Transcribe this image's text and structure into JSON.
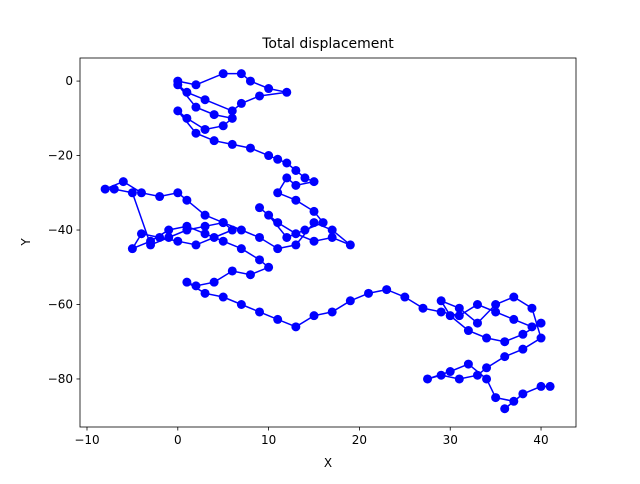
{
  "chart_data": {
    "type": "line",
    "title": "Total displacement",
    "xlabel": "X",
    "ylabel": "Y",
    "color": "#0000ff",
    "marker": true,
    "grid": false,
    "xlim": [
      -10.77,
      43.85
    ],
    "ylim": [
      -92.9,
      6.2
    ],
    "xticks": [
      {
        "value": -10,
        "label": "−10"
      },
      0,
      10,
      20,
      30,
      40
    ],
    "yticks": [
      {
        "value": -80,
        "label": "−80"
      },
      {
        "value": -60,
        "label": "−60"
      },
      {
        "value": -40,
        "label": "−40"
      },
      {
        "value": -20,
        "label": "−20"
      },
      0
    ],
    "x": [
      0,
      2,
      5,
      7,
      8,
      10,
      12,
      9,
      7,
      6,
      3,
      1,
      0,
      2,
      4,
      6,
      5,
      3,
      1,
      0,
      2,
      4,
      6,
      8,
      10,
      11,
      12,
      13,
      14,
      15,
      13,
      12,
      11,
      13,
      15,
      16,
      14,
      12,
      10,
      9,
      11,
      13,
      15,
      17,
      19,
      17,
      15,
      13,
      11,
      9,
      7,
      5,
      3,
      1,
      -1,
      -3,
      -5,
      -7,
      -8,
      -6,
      -4,
      -2,
      0,
      1,
      3,
      5,
      6,
      4,
      2,
      0,
      -2,
      -4,
      -5,
      -3,
      -1,
      1,
      3,
      5,
      7,
      9,
      10,
      8,
      6,
      4,
      2,
      1,
      3,
      5,
      7,
      9,
      11,
      13,
      15,
      17,
      19,
      21,
      23,
      25,
      27,
      29,
      31,
      33,
      35,
      37,
      39,
      40,
      38,
      36,
      34,
      32,
      30,
      29,
      31,
      33,
      35,
      37,
      39,
      40,
      38,
      36,
      34,
      33,
      31,
      29,
      27.5,
      30,
      32,
      34,
      35,
      37,
      36,
      38,
      40,
      41
    ],
    "y": [
      0,
      -1,
      2,
      2,
      0,
      -2,
      -3,
      -4,
      -6,
      -8,
      -5,
      -3,
      -1,
      -7,
      -9,
      -10,
      -12,
      -13,
      -10,
      -8,
      -14,
      -16,
      -17,
      -18,
      -20,
      -21,
      -22,
      -24,
      -26,
      -27,
      -28,
      -26,
      -30,
      -32,
      -35,
      -38,
      -40,
      -42,
      -36,
      -34,
      -38,
      -41,
      -43,
      -42,
      -44,
      -40,
      -38,
      -44,
      -45,
      -42,
      -40,
      -38,
      -39,
      -40,
      -42,
      -44,
      -30,
      -29,
      -29,
      -27,
      -30,
      -31,
      -30,
      -32,
      -36,
      -38,
      -40,
      -42,
      -44,
      -43,
      -42,
      -41,
      -45,
      -43,
      -40,
      -39,
      -41,
      -43,
      -45,
      -48,
      -50,
      -52,
      -51,
      -54,
      -55,
      -54,
      -57,
      -58,
      -60,
      -62,
      -64,
      -66,
      -63,
      -62,
      -59,
      -57,
      -56,
      -58,
      -61,
      -62,
      -63,
      -60,
      -62,
      -64,
      -66,
      -65,
      -68,
      -70,
      -69,
      -67,
      -63,
      -59,
      -61,
      -65,
      -60,
      -58,
      -61,
      -69,
      -72,
      -74,
      -77,
      -79,
      -80,
      -79,
      -80,
      -78,
      -76,
      -80,
      -85,
      -86,
      -88,
      -84,
      -82,
      -82
    ]
  }
}
